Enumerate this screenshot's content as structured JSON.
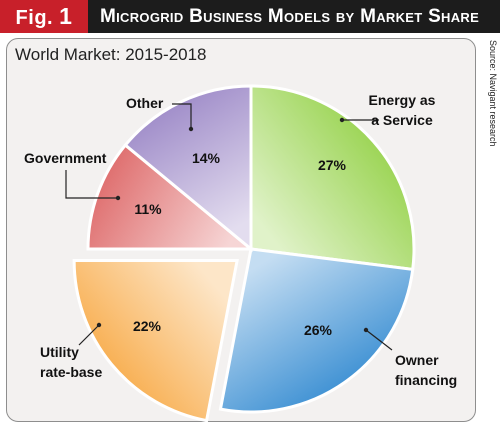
{
  "header": {
    "fig_prefix": "Fig.",
    "fig_number": "1",
    "title": "Microgrid Business Models by Market Share"
  },
  "subtitle": "World Market: 2015-2018",
  "source": "Source: Navigant research",
  "colors": {
    "header_bg": "#1c1c1c",
    "fig_tag_bg": "#c8202a",
    "panel_bg": "#f3f1f0"
  },
  "chart_data": {
    "type": "pie",
    "title": "Microgrid Business Models by Market Share",
    "subtitle": "World Market: 2015-2018",
    "slices": [
      {
        "label": "Energy as a Service",
        "label_lines": [
          "Energy as",
          "a Service"
        ],
        "value": 27,
        "value_label": "27%",
        "color": "#8fcf3f",
        "exploded": false
      },
      {
        "label": "Owner financing",
        "label_lines": [
          "Owner",
          "financing"
        ],
        "value": 26,
        "value_label": "26%",
        "color": "#2b86cf",
        "exploded": false
      },
      {
        "label": "Utility rate-base",
        "label_lines": [
          "Utility",
          "rate-base"
        ],
        "value": 22,
        "value_label": "22%",
        "color": "#f7a43a",
        "exploded": true
      },
      {
        "label": "Government",
        "label_lines": [
          "Government"
        ],
        "value": 11,
        "value_label": "11%",
        "color": "#de6a6a",
        "exploded": false
      },
      {
        "label": "Other",
        "label_lines": [
          "Other"
        ],
        "value": 14,
        "value_label": "14%",
        "color": "#9a86c6",
        "exploded": false
      }
    ]
  }
}
